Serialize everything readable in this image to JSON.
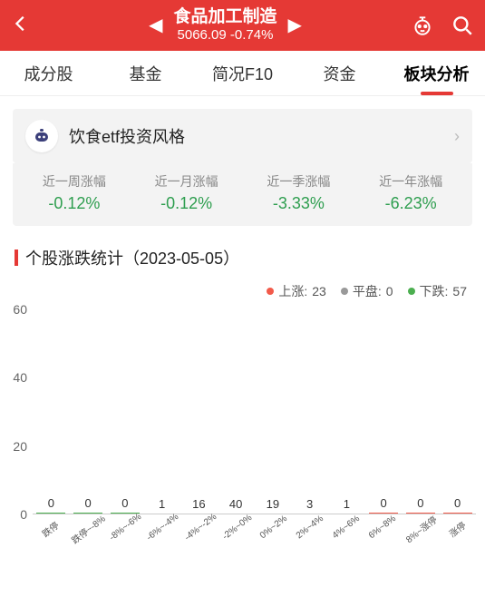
{
  "header": {
    "title": "食品加工制造",
    "index_value": "5066.09",
    "change_pct": "-0.74%"
  },
  "tabs": [
    {
      "label": "成分股",
      "active": false
    },
    {
      "label": "基金",
      "active": false
    },
    {
      "label": "简况F10",
      "active": false
    },
    {
      "label": "资金",
      "active": false
    },
    {
      "label": "板块分析",
      "active": true
    }
  ],
  "banner": {
    "text": "饮食etf投资风格"
  },
  "stats": [
    {
      "label": "近一周涨幅",
      "value": "-0.12%"
    },
    {
      "label": "近一月涨幅",
      "value": "-0.12%"
    },
    {
      "label": "近一季涨幅",
      "value": "-3.33%"
    },
    {
      "label": "近一年涨幅",
      "value": "-6.23%"
    }
  ],
  "section_title": "个股涨跌统计（2023-05-05）",
  "legend": {
    "up_label": "上涨:",
    "up_count": "23",
    "flat_label": "平盘:",
    "flat_count": "0",
    "down_label": "下跌:",
    "down_count": "57"
  },
  "chart": {
    "ylim": 60,
    "yticks": [
      0,
      20,
      40,
      60
    ],
    "colors": {
      "down": "#4caf50",
      "up": "#f25a4a"
    },
    "bars": [
      {
        "x": "跌停",
        "v": 0,
        "c": "down"
      },
      {
        "x": "跌停~-8%",
        "v": 0,
        "c": "down"
      },
      {
        "x": "-8%~-6%",
        "v": 0,
        "c": "down"
      },
      {
        "x": "-6%~-4%",
        "v": 1,
        "c": "down"
      },
      {
        "x": "-4%~-2%",
        "v": 16,
        "c": "down"
      },
      {
        "x": "-2%~0%",
        "v": 40,
        "c": "down"
      },
      {
        "x": "0%~2%",
        "v": 19,
        "c": "up"
      },
      {
        "x": "2%~4%",
        "v": 3,
        "c": "up"
      },
      {
        "x": "4%~6%",
        "v": 1,
        "c": "up"
      },
      {
        "x": "6%~8%",
        "v": 0,
        "c": "up"
      },
      {
        "x": "8%~涨停",
        "v": 0,
        "c": "up"
      },
      {
        "x": "涨停",
        "v": 0,
        "c": "up"
      }
    ]
  }
}
